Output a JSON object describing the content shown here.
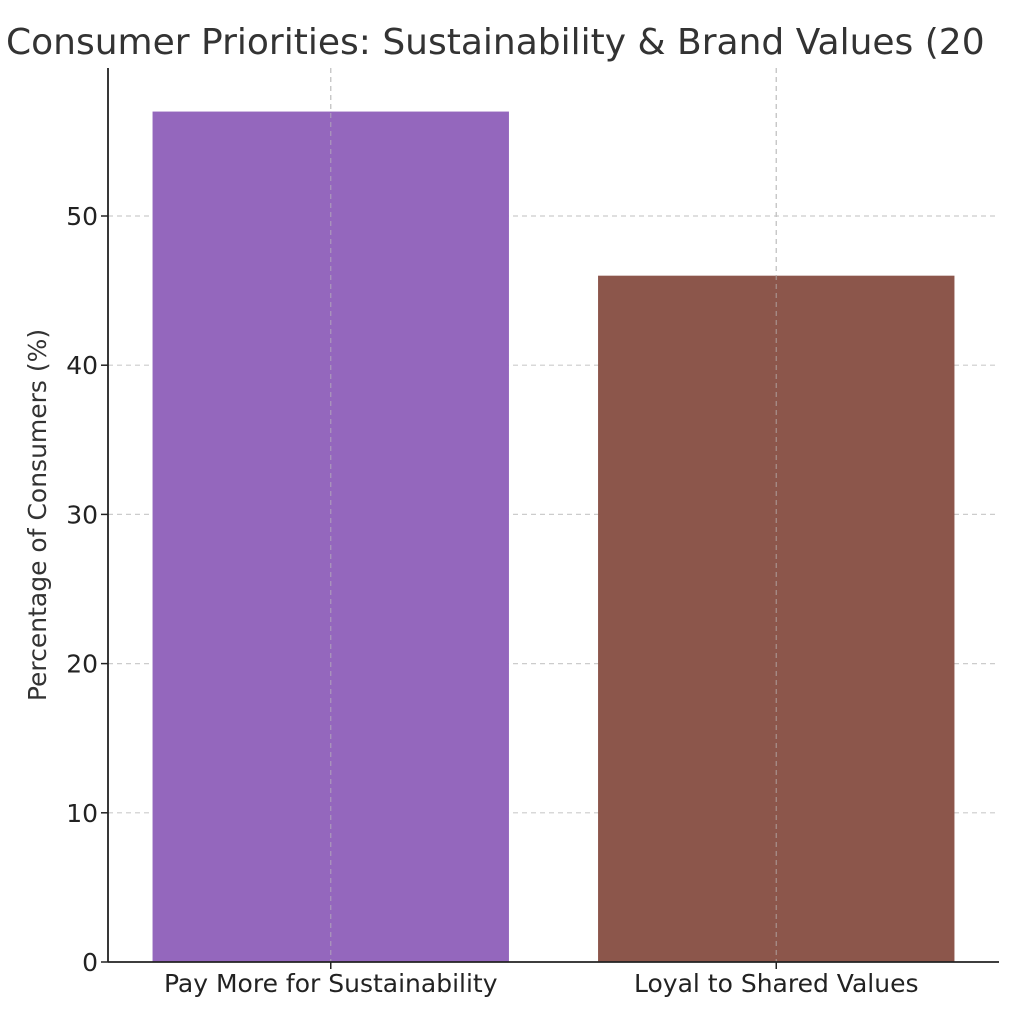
{
  "chart_data": {
    "type": "bar",
    "title": "Consumer Priorities: Sustainability & Brand Values (20",
    "xlabel": "",
    "ylabel": "Percentage of Consumers (%)",
    "categories": [
      "Pay More for Sustainability",
      "Loyal to Shared Values"
    ],
    "values": [
      57,
      46
    ],
    "colors": [
      "#9467bd",
      "#8c564b"
    ],
    "ylim": [
      0,
      60
    ],
    "yticks": [
      0,
      10,
      20,
      30,
      40,
      50
    ],
    "grid": true,
    "legend": "none"
  }
}
